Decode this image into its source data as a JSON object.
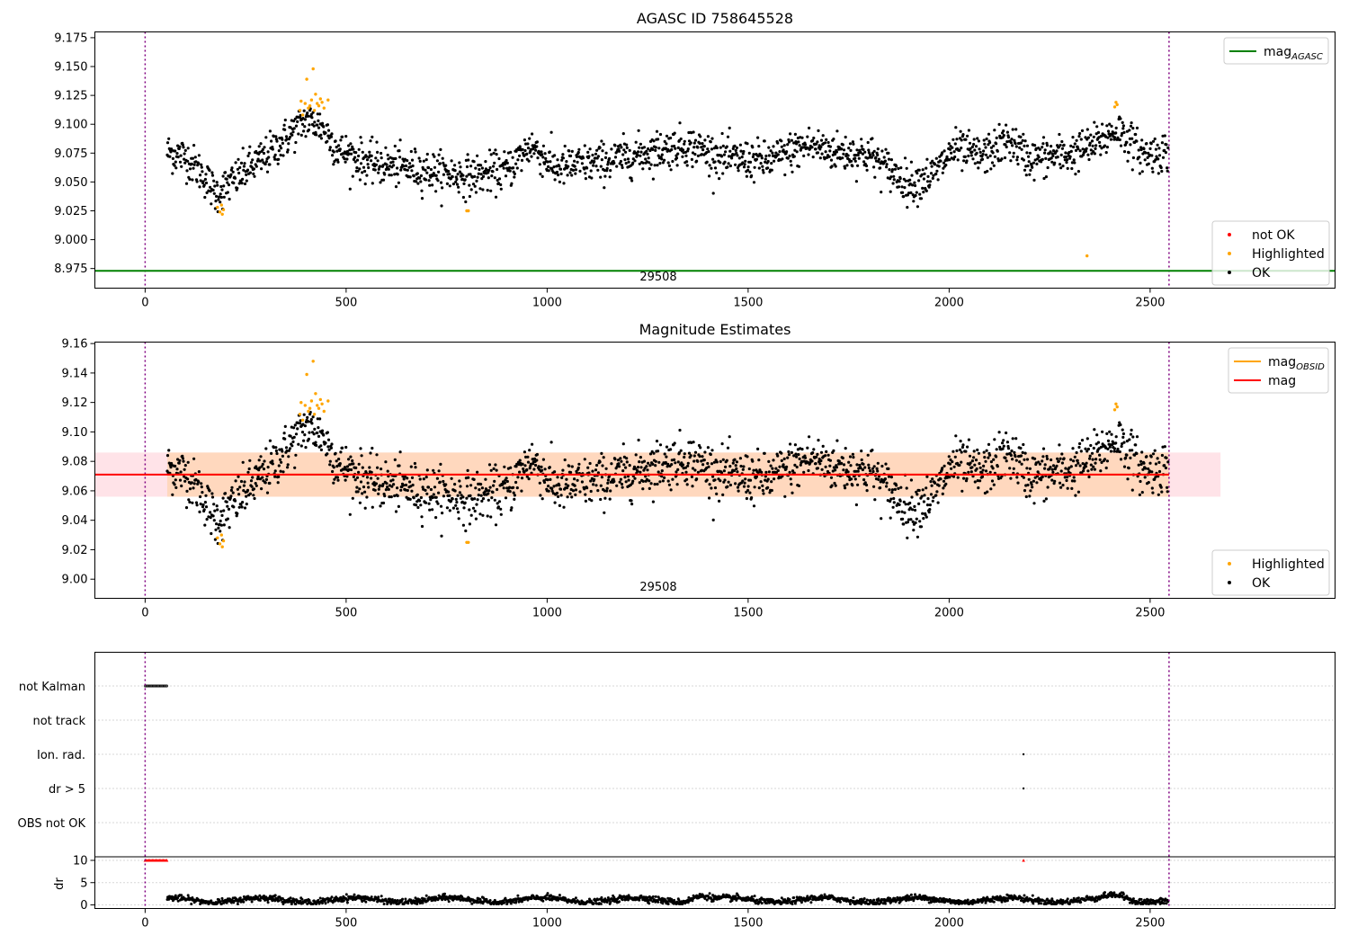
{
  "chart_data": [
    {
      "type": "scatter",
      "title": "AGASC ID 758645528",
      "xlim": [
        -125,
        2960
      ],
      "ylim": [
        8.958,
        9.18
      ],
      "xticks": [
        0,
        500,
        1000,
        1500,
        2000,
        2500
      ],
      "yticks": [
        8.975,
        9.0,
        9.025,
        9.05,
        9.075,
        9.1,
        9.125,
        9.15,
        9.175
      ],
      "ytick_format": 3,
      "obsid_label": "29508",
      "obsid_label_x": 1280,
      "vlines": [
        0,
        2547
      ],
      "hline": {
        "name": "mag_AGASC",
        "y": 8.973,
        "color": "#008000"
      },
      "legends": [
        {
          "position": "top-right",
          "items": [
            {
              "kind": "line",
              "main": "mag",
              "sub": "AGASC",
              "color": "#008000"
            }
          ]
        },
        {
          "position": "bottom-right",
          "items": [
            {
              "kind": "dot",
              "label": "not OK",
              "color": "#ff0000"
            },
            {
              "kind": "dot",
              "label": "Highlighted",
              "color": "#ffa500"
            },
            {
              "kind": "dot",
              "label": "OK",
              "color": "#000000"
            }
          ]
        }
      ],
      "series": [
        {
          "name": "not OK",
          "color": "#ff0000",
          "values": []
        },
        {
          "name": "Highlighted",
          "color": "#ffa500",
          "values": [
            [
              180,
              9.028
            ],
            [
              186,
              9.024
            ],
            [
              190,
              9.03
            ],
            [
              192,
              9.022
            ],
            [
              195,
              9.026
            ],
            [
              385,
              9.112
            ],
            [
              388,
              9.12
            ],
            [
              392,
              9.108
            ],
            [
              398,
              9.118
            ],
            [
              402,
              9.139
            ],
            [
              406,
              9.114
            ],
            [
              410,
              9.116
            ],
            [
              414,
              9.121
            ],
            [
              418,
              9.148
            ],
            [
              421,
              9.112
            ],
            [
              424,
              9.126
            ],
            [
              428,
              9.118
            ],
            [
              432,
              9.116
            ],
            [
              436,
              9.122
            ],
            [
              440,
              9.119
            ],
            [
              445,
              9.114
            ],
            [
              455,
              9.121
            ],
            [
              800,
              9.025
            ],
            [
              804,
              9.025
            ],
            [
              2343,
              8.986
            ],
            [
              2412,
              9.115
            ],
            [
              2415,
              9.119
            ],
            [
              2418,
              9.117
            ]
          ]
        },
        {
          "name": "OK",
          "color": "#000000",
          "generated": "dense light-curve points, ~1900 samples from x=55 to x=2545, center 9.05–9.10"
        }
      ],
      "ok_baseline": [
        [
          55,
          9.076
        ],
        [
          100,
          9.072
        ],
        [
          140,
          9.058
        ],
        [
          175,
          9.04
        ],
        [
          210,
          9.048
        ],
        [
          250,
          9.06
        ],
        [
          300,
          9.072
        ],
        [
          350,
          9.088
        ],
        [
          400,
          9.104
        ],
        [
          440,
          9.098
        ],
        [
          480,
          9.078
        ],
        [
          560,
          9.066
        ],
        [
          700,
          9.06
        ],
        [
          800,
          9.055
        ],
        [
          900,
          9.06
        ],
        [
          960,
          9.082
        ],
        [
          1020,
          9.062
        ],
        [
          1150,
          9.068
        ],
        [
          1280,
          9.078
        ],
        [
          1350,
          9.082
        ],
        [
          1450,
          9.07
        ],
        [
          1550,
          9.068
        ],
        [
          1650,
          9.082
        ],
        [
          1720,
          9.076
        ],
        [
          1800,
          9.074
        ],
        [
          1900,
          9.048
        ],
        [
          1960,
          9.056
        ],
        [
          2010,
          9.078
        ],
        [
          2080,
          9.072
        ],
        [
          2150,
          9.086
        ],
        [
          2200,
          9.07
        ],
        [
          2300,
          9.074
        ],
        [
          2360,
          9.082
        ],
        [
          2420,
          9.096
        ],
        [
          2480,
          9.074
        ],
        [
          2545,
          9.076
        ]
      ]
    },
    {
      "type": "scatter",
      "title": "Magnitude Estimates",
      "xlim": [
        -125,
        2960
      ],
      "ylim": [
        8.987,
        9.161
      ],
      "xticks": [
        0,
        500,
        1000,
        1500,
        2000,
        2500
      ],
      "yticks": [
        9.0,
        9.02,
        9.04,
        9.06,
        9.08,
        9.1,
        9.12,
        9.14,
        9.16
      ],
      "ytick_format": 2,
      "obsid_label": "29508",
      "obsid_label_x": 1280,
      "vlines": [
        0,
        2547
      ],
      "band_mag": {
        "y": 9.071,
        "lower": 9.056,
        "upper": 9.086,
        "x": [
          -125,
          2675
        ],
        "color": "#ffc0cb"
      },
      "band_obsid": {
        "lower": 9.056,
        "upper": 9.086,
        "x": [
          55,
          2547
        ],
        "color": "#ffa500"
      },
      "legends": [
        {
          "position": "top-right",
          "items": [
            {
              "kind": "line",
              "main": "mag",
              "sub": "OBSID",
              "color": "#ffa500"
            },
            {
              "kind": "line",
              "main": "mag",
              "sub": "",
              "color": "#ff0000"
            }
          ]
        },
        {
          "position": "bottom-right",
          "items": [
            {
              "kind": "dot",
              "label": "Highlighted",
              "color": "#ffa500"
            },
            {
              "kind": "dot",
              "label": "OK",
              "color": "#000000"
            }
          ]
        }
      ],
      "series": [
        {
          "name": "mag_OBSID",
          "color": "#ffa500",
          "y": 9.071
        },
        {
          "name": "mag",
          "color": "#ff0000",
          "y": 9.071
        },
        {
          "name": "Highlighted",
          "color": "#ffa500",
          "same_as": "panel 1"
        },
        {
          "name": "OK",
          "color": "#000000",
          "same_as": "panel 1"
        }
      ]
    },
    {
      "type": "scatter",
      "xlim": [
        -125,
        2960
      ],
      "xticks": [
        0,
        500,
        1000,
        1500,
        2000,
        2500
      ],
      "vlines": [
        0,
        2547
      ],
      "flag_rows": [
        "not Kalman",
        "not track",
        "Ion. rad.",
        "dr > 5",
        "OBS not OK"
      ],
      "flags": {
        "not Kalman": {
          "x": [
            0,
            55
          ]
        },
        "Ion. rad.": {
          "x": [
            2185
          ]
        },
        "dr > 5": {
          "x": [
            2185
          ]
        }
      },
      "dr_panel": {
        "ylabel": "dr",
        "ylim": [
          -0.5,
          10.5
        ],
        "yticks": [
          0,
          5,
          10
        ],
        "clipped_marker": {
          "x": [
            0,
            55
          ],
          "single": 2185,
          "y": 10,
          "color": "#ff0000"
        },
        "dr_baseline": "black points x=55..2545, dr 0.5–2.5"
      }
    }
  ]
}
